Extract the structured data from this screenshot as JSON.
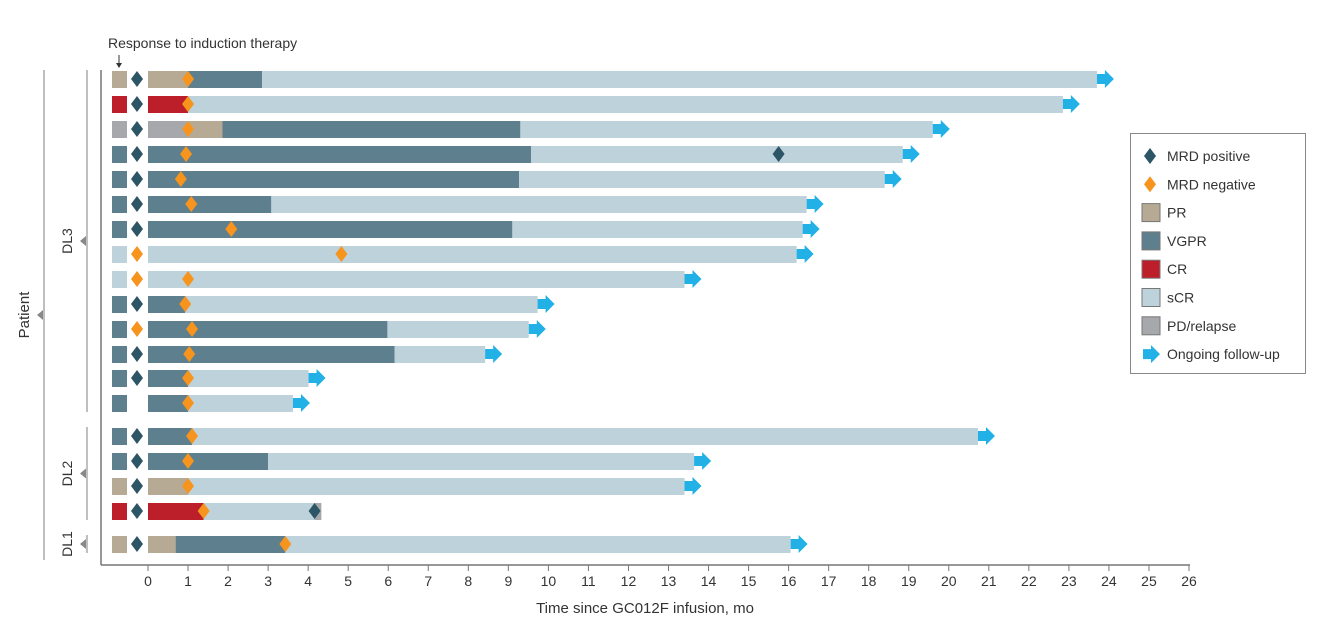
{
  "chart_data": {
    "type": "swimmer",
    "annotation": "Response to induction therapy",
    "xlabel": "Time since GC012F infusion, mo",
    "ylabel": "Patient",
    "xlim": [
      0,
      26
    ],
    "xticks": [
      "0",
      "1",
      "2",
      "3",
      "4",
      "5",
      "6",
      "7",
      "8",
      "9",
      "10",
      "11",
      "12",
      "13",
      "14",
      "15",
      "16",
      "17",
      "18",
      "19",
      "20",
      "21",
      "22",
      "23",
      "24",
      "25",
      "26"
    ],
    "colors": {
      "PR": "#b6aa95",
      "VGPR": "#5e7f8d",
      "CR": "#bd1f2a",
      "sCR": "#bdd2db",
      "PD": "#a7a8ac",
      "mrd_pos": "#2c5566",
      "mrd_neg": "#f7941d",
      "arrow": "#22b1e6"
    },
    "groups": [
      {
        "label": "DL3",
        "rows": [
          0,
          1,
          2,
          3,
          4,
          5,
          6,
          7,
          8,
          9,
          10,
          11,
          12,
          13
        ]
      },
      {
        "label": "DL2",
        "rows": [
          14,
          15,
          16,
          17
        ]
      },
      {
        "label": "DL1",
        "rows": [
          18
        ]
      }
    ],
    "legend": [
      {
        "key": "mrd_pos",
        "label": "MRD positive",
        "kind": "diamond"
      },
      {
        "key": "mrd_neg",
        "label": "MRD negative",
        "kind": "diamond"
      },
      {
        "key": "PR",
        "label": "PR",
        "kind": "box"
      },
      {
        "key": "VGPR",
        "label": "VGPR",
        "kind": "box"
      },
      {
        "key": "CR",
        "label": "CR",
        "kind": "box"
      },
      {
        "key": "sCR",
        "label": "sCR",
        "kind": "box"
      },
      {
        "key": "PD",
        "label": "PD/relapse",
        "kind": "box"
      },
      {
        "key": "arrow",
        "label": "Ongoing follow-up",
        "kind": "arrow"
      }
    ],
    "patients": [
      {
        "induction": "PR",
        "induction_mrd": "pos",
        "segments": [
          [
            "PR",
            0,
            1.0
          ],
          [
            "VGPR",
            1.0,
            2.85
          ],
          [
            "sCR",
            2.85,
            23.7
          ]
        ],
        "mrd": [
          [
            "neg",
            1.0
          ]
        ],
        "ongoing": true
      },
      {
        "induction": "CR",
        "induction_mrd": "pos",
        "segments": [
          [
            "CR",
            0,
            1.0
          ],
          [
            "sCR",
            1.0,
            22.85
          ]
        ],
        "mrd": [
          [
            "neg",
            1.0
          ]
        ],
        "ongoing": true
      },
      {
        "induction": "PD",
        "induction_mrd": "pos",
        "segments": [
          [
            "PD",
            0,
            1.0
          ],
          [
            "PR",
            1.0,
            1.86
          ],
          [
            "VGPR",
            1.86,
            9.3
          ],
          [
            "sCR",
            9.3,
            19.6
          ]
        ],
        "mrd": [
          [
            "neg",
            1.0
          ]
        ],
        "ongoing": true
      },
      {
        "induction": "VGPR",
        "induction_mrd": "pos",
        "segments": [
          [
            "VGPR",
            0,
            9.57
          ],
          [
            "sCR",
            9.57,
            18.85
          ]
        ],
        "mrd": [
          [
            "neg",
            0.95
          ],
          [
            "pos",
            15.75
          ]
        ],
        "ongoing": true
      },
      {
        "induction": "VGPR",
        "induction_mrd": "pos",
        "segments": [
          [
            "VGPR",
            0,
            9.27
          ],
          [
            "sCR",
            9.27,
            18.4
          ]
        ],
        "mrd": [
          [
            "neg",
            0.82
          ]
        ],
        "ongoing": true
      },
      {
        "induction": "VGPR",
        "induction_mrd": "pos",
        "segments": [
          [
            "VGPR",
            0,
            3.08
          ],
          [
            "sCR",
            3.08,
            16.45
          ]
        ],
        "mrd": [
          [
            "neg",
            1.08
          ]
        ],
        "ongoing": true
      },
      {
        "induction": "VGPR",
        "induction_mrd": "pos",
        "segments": [
          [
            "VGPR",
            0,
            9.1
          ],
          [
            "sCR",
            9.1,
            16.35
          ]
        ],
        "mrd": [
          [
            "neg",
            2.08
          ]
        ],
        "ongoing": true
      },
      {
        "induction": "sCR",
        "induction_mrd": "neg",
        "segments": [
          [
            "sCR",
            0,
            16.2
          ]
        ],
        "mrd": [
          [
            "neg",
            4.83
          ]
        ],
        "ongoing": true
      },
      {
        "induction": "sCR",
        "induction_mrd": "neg",
        "segments": [
          [
            "sCR",
            0,
            13.4
          ]
        ],
        "mrd": [
          [
            "neg",
            1.0
          ]
        ],
        "ongoing": true
      },
      {
        "induction": "VGPR",
        "induction_mrd": "pos",
        "segments": [
          [
            "VGPR",
            0,
            0.93
          ],
          [
            "sCR",
            0.93,
            9.73
          ]
        ],
        "mrd": [
          [
            "neg",
            0.93
          ]
        ],
        "ongoing": true
      },
      {
        "induction": "VGPR",
        "induction_mrd": "neg",
        "segments": [
          [
            "VGPR",
            0,
            5.98
          ],
          [
            "sCR",
            5.98,
            9.51
          ]
        ],
        "mrd": [
          [
            "neg",
            1.1
          ]
        ],
        "ongoing": true
      },
      {
        "induction": "VGPR",
        "induction_mrd": "pos",
        "segments": [
          [
            "VGPR",
            0,
            6.16
          ],
          [
            "sCR",
            6.16,
            8.42
          ]
        ],
        "mrd": [
          [
            "neg",
            1.03
          ]
        ],
        "ongoing": true
      },
      {
        "induction": "VGPR",
        "induction_mrd": "pos",
        "segments": [
          [
            "VGPR",
            0,
            1.0
          ],
          [
            "sCR",
            1.0,
            4.01
          ]
        ],
        "mrd": [
          [
            "neg",
            1.0
          ]
        ],
        "ongoing": true
      },
      {
        "induction": "VGPR",
        "induction_mrd": null,
        "segments": [
          [
            "VGPR",
            0,
            1.0
          ],
          [
            "sCR",
            1.0,
            3.62
          ]
        ],
        "mrd": [
          [
            "neg",
            1.0
          ]
        ],
        "ongoing": true
      },
      {
        "induction": "VGPR",
        "induction_mrd": "pos",
        "segments": [
          [
            "VGPR",
            0,
            1.1
          ],
          [
            "sCR",
            1.1,
            20.73
          ]
        ],
        "mrd": [
          [
            "neg",
            1.1
          ]
        ],
        "ongoing": true
      },
      {
        "induction": "VGPR",
        "induction_mrd": "pos",
        "segments": [
          [
            "VGPR",
            0,
            3.0
          ],
          [
            "sCR",
            3.0,
            13.64
          ]
        ],
        "mrd": [
          [
            "neg",
            1.0
          ]
        ],
        "ongoing": true
      },
      {
        "induction": "PR",
        "induction_mrd": "pos",
        "segments": [
          [
            "PR",
            0,
            1.0
          ],
          [
            "sCR",
            1.0,
            13.4
          ]
        ],
        "mrd": [
          [
            "neg",
            1.0
          ]
        ],
        "ongoing": true
      },
      {
        "induction": "CR",
        "induction_mrd": "pos",
        "segments": [
          [
            "CR",
            0,
            1.39
          ],
          [
            "sCR",
            1.39,
            4.16
          ],
          [
            "PD",
            4.16,
            4.33
          ]
        ],
        "mrd": [
          [
            "neg",
            1.39
          ],
          [
            "pos",
            4.16
          ]
        ],
        "ongoing": false
      },
      {
        "induction": "PR",
        "induction_mrd": "pos",
        "segments": [
          [
            "PR",
            0,
            0.69
          ],
          [
            "VGPR",
            0.69,
            3.43
          ],
          [
            "sCR",
            3.43,
            16.05
          ]
        ],
        "mrd": [
          [
            "neg",
            3.43
          ]
        ],
        "ongoing": true
      }
    ]
  }
}
